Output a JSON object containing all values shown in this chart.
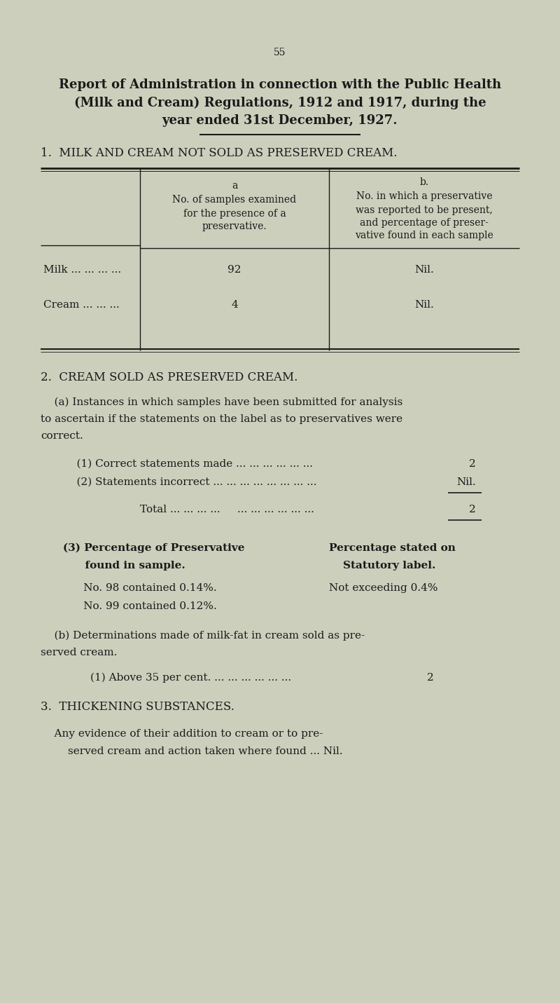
{
  "bg_color": "#cccfbc",
  "text_color": "#1a1a1a",
  "page_number": "55",
  "title_line1": "Report of Administration in connection with the Public Health",
  "title_line2": "(Milk and Cream) Regulations, 1912 and 1917, during the",
  "title_line3": "year ended 31st December, 1927.",
  "section1_heading": "1.  MILK AND CREAM NOT SOLD AS PRESERVED CREAM.",
  "table_col_a_header1": "a",
  "table_col_a_header2": "No. of samples examined",
  "table_col_a_header3": "for the presence of a",
  "table_col_a_header4": "preservative.",
  "table_col_b_header1": "b.",
  "table_col_b_header2": "No. in which a preservative",
  "table_col_b_header3": "was reported to be present,",
  "table_col_b_header4": "and percentage of preser-",
  "table_col_b_header5": "vative found in each sample",
  "table_row1_label": "Milk ... ... ... ...",
  "table_row1_a": "92",
  "table_row1_b": "Nil.",
  "table_row2_label": "Cream ... ... ...",
  "table_row2_a": "4",
  "table_row2_b": "Nil.",
  "section2_heading": "2.  CREAM SOLD AS PRESERVED CREAM.",
  "section2a_intro1": "    (a) Instances in which samples have been submitted for analysis",
  "section2a_intro2": "to ascertain if the statements on the label as to preservatives were",
  "section2a_intro3": "correct.",
  "item1_text": "    (1) Correct statements made ... ... ... ... ... ...",
  "item1_value": "2",
  "item2_text": "    (2) Statements incorrect ... ... ... ... ... ... ... ...",
  "item2_value": "Nil.",
  "total_label": "Total ... ... ... ...     ... ... ... ... ... ...",
  "total_value": "2",
  "section3_heading_left": "(3) Percentage of Preservative",
  "section3_heading_right": "Percentage stated on",
  "section3_sub_left": "      found in sample.",
  "section3_sub_right": "Statutory label.",
  "sample98_left": "      No. 98 contained 0.14%.",
  "sample98_right": "Not exceeding 0.4%",
  "sample99_left": "      No. 99 contained 0.12%.",
  "section2b_text1": "    (b) Determinations made of milk-fat in cream sold as pre-",
  "section2b_text2": "served cream.",
  "section2b_item": "        (1) Above 35 per cent. ... ... ... ... ... ...",
  "section2b_value": "2",
  "section3_title": "3.  THICKENING SUBSTANCES.",
  "section3_text1": "    Any evidence of their addition to cream or to pre-",
  "section3_text2": "        served cream and action taken where found ... Nil."
}
